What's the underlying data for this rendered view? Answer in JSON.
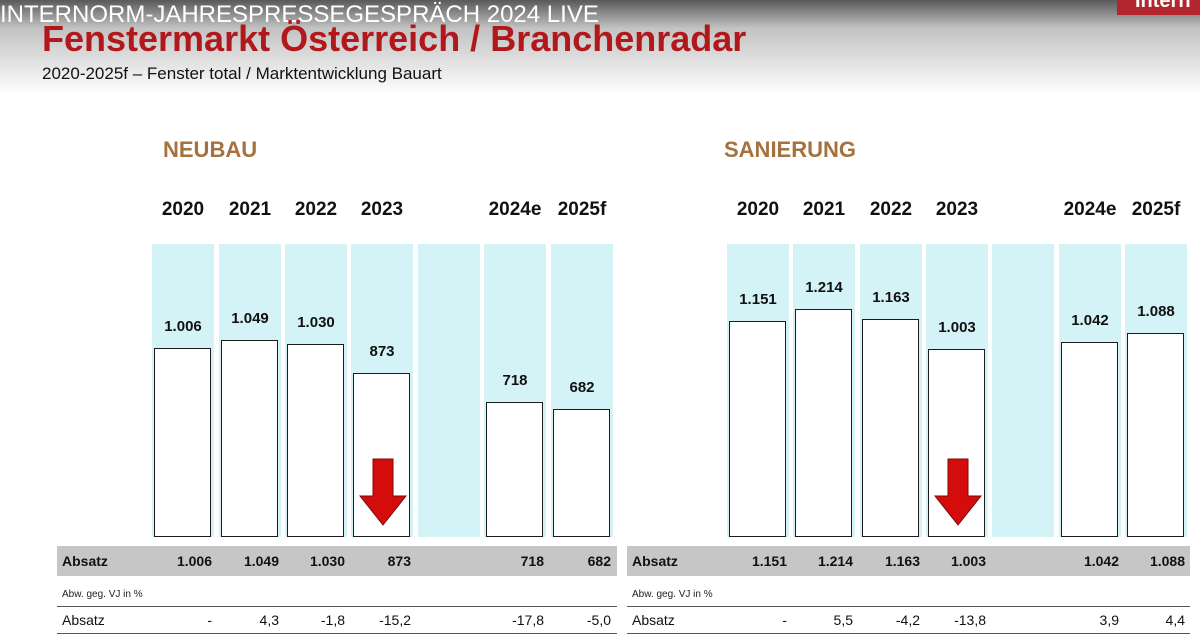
{
  "video_title": "INTERNORM-JAHRESPRESSEGESPRÄCH 2024 LIVE",
  "logo_text": "Intern",
  "slide": {
    "title": "Fenstermarkt Österreich / Branchenradar",
    "subtitle": "2020-2025f – Fenster total / Marktentwicklung Bauart"
  },
  "colors": {
    "title": "#b1181c",
    "panel_title": "#a5723f",
    "column_bg": "#d4f3f6",
    "arrow": "#d40c0c"
  },
  "icons": [
    "down-arrow-icon"
  ],
  "chart_data": [
    {
      "type": "bar",
      "title": "NEUBAU",
      "categories": [
        "2020",
        "2021",
        "2022",
        "2023",
        "2024e",
        "2025f"
      ],
      "values": [
        1006,
        1049,
        1030,
        873,
        718,
        682
      ],
      "value_labels": [
        "1.006",
        "1.049",
        "1.030",
        "873",
        "718",
        "682"
      ],
      "decline_arrow_category": "2023",
      "table": {
        "absatz_label": "Absatz",
        "absatz_values": [
          "1.006",
          "1.049",
          "1.030",
          "873",
          "718",
          "682"
        ],
        "note": "Abw. geg. VJ in %",
        "change_label": "Absatz",
        "change_values": [
          "-",
          "4,3",
          "-1,8",
          "-15,2",
          "-17,8",
          "-5,0"
        ]
      }
    },
    {
      "type": "bar",
      "title": "SANIERUNG",
      "categories": [
        "2020",
        "2021",
        "2022",
        "2023",
        "2024e",
        "2025f"
      ],
      "values": [
        1151,
        1214,
        1163,
        1003,
        1042,
        1088
      ],
      "value_labels": [
        "1.151",
        "1.214",
        "1.163",
        "1.003",
        "1.042",
        "1.088"
      ],
      "decline_arrow_category": "2023",
      "table": {
        "absatz_label": "Absatz",
        "absatz_values": [
          "1.151",
          "1.214",
          "1.163",
          "1.003",
          "1.042",
          "1.088"
        ],
        "note": "Abw. geg. VJ in %",
        "change_label": "Absatz",
        "change_values": [
          "-",
          "5,5",
          "-4,2",
          "-13,8",
          "3,9",
          "4,4"
        ]
      }
    }
  ]
}
